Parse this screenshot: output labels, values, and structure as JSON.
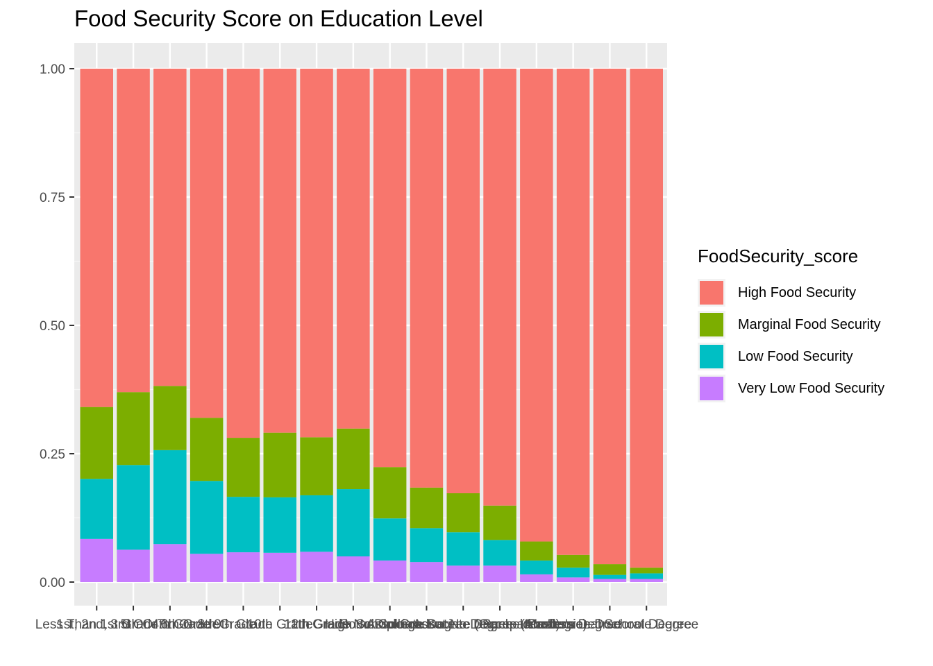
{
  "chart_data": {
    "type": "bar",
    "stacked": true,
    "title": "Food Security Score on Education Level",
    "xlabel": "",
    "ylabel": "",
    "ylim": [
      0,
      1
    ],
    "yticks": [
      "0.00",
      "0.25",
      "0.50",
      "0.75",
      "1.00"
    ],
    "ytick_values": [
      0,
      0.25,
      0.5,
      0.75,
      1
    ],
    "grid": true,
    "legend_position": "right",
    "legend_title": "FoodSecurity_score",
    "categories": [
      "Less Than 1st Grade",
      "1st, 2nd, 3rd Or 4th Grade",
      "5th Or 6th Grade",
      "7th Or 8th Grade",
      "9th Grade",
      "10th Grade",
      "11th Grade",
      "12th Grade No Diploma",
      "High School Graduate",
      "Some College But No Degree",
      "Associate Degree (Occupational)",
      "Associate Degree (Academic)",
      "Bachelor's Degree",
      "Master's Degree",
      "Professional School Degree",
      "Doctorate Degree"
    ],
    "series": [
      {
        "name": "Very Low Food Security",
        "color": "#C77CFF",
        "values": [
          0.084,
          0.063,
          0.074,
          0.055,
          0.058,
          0.057,
          0.059,
          0.05,
          0.042,
          0.039,
          0.032,
          0.032,
          0.015,
          0.009,
          0.006,
          0.006
        ]
      },
      {
        "name": "Low Food Security",
        "color": "#00BFC4",
        "values": [
          0.117,
          0.165,
          0.183,
          0.142,
          0.108,
          0.108,
          0.11,
          0.131,
          0.082,
          0.066,
          0.065,
          0.05,
          0.027,
          0.019,
          0.008,
          0.011
        ]
      },
      {
        "name": "Marginal Food Security",
        "color": "#7CAE00",
        "values": [
          0.14,
          0.142,
          0.125,
          0.123,
          0.115,
          0.126,
          0.113,
          0.118,
          0.1,
          0.079,
          0.076,
          0.067,
          0.037,
          0.025,
          0.021,
          0.011
        ]
      },
      {
        "name": "High Food Security",
        "color": "#F8766D",
        "values": [
          0.659,
          0.63,
          0.618,
          0.68,
          0.719,
          0.709,
          0.718,
          0.701,
          0.776,
          0.816,
          0.827,
          0.851,
          0.921,
          0.947,
          0.965,
          0.972
        ]
      }
    ],
    "legend_order": [
      "High Food Security",
      "Marginal Food Security",
      "Low Food Security",
      "Very Low Food Security"
    ]
  }
}
